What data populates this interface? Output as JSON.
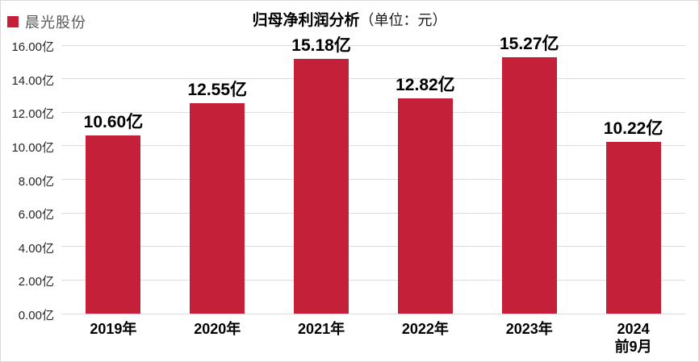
{
  "legend": {
    "label": "晨光股份",
    "swatch_color": "#c5203a"
  },
  "title": {
    "main": "归母净利润分析",
    "unit": "（单位：元）"
  },
  "chart_data": {
    "type": "bar",
    "title": "归母净利润分析（单位：元）",
    "legend_position": "top-left",
    "grid": true,
    "categories": [
      "2019年",
      "2020年",
      "2021年",
      "2022年",
      "2023年",
      "2024\n前9月"
    ],
    "series": [
      {
        "name": "晨光股份",
        "values": [
          10.6,
          12.55,
          15.18,
          12.82,
          15.27,
          10.22
        ]
      }
    ],
    "value_labels": [
      "10.60亿",
      "12.55亿",
      "15.18亿",
      "12.82亿",
      "15.27亿",
      "10.22亿"
    ],
    "y_ticks": [
      "0.00亿",
      "2.00亿",
      "4.00亿",
      "6.00亿",
      "8.00亿",
      "10.00亿",
      "12.00亿",
      "14.00亿",
      "16.00亿"
    ],
    "ylim": [
      0,
      16
    ],
    "xlabel": "",
    "ylabel": "",
    "bar_color": "#c5203a",
    "gridline_color": "#dcdcdc"
  }
}
